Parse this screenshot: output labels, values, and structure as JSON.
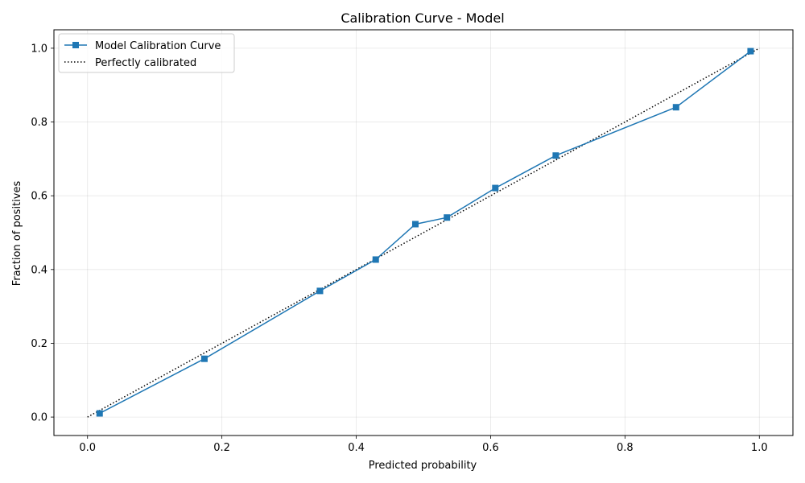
{
  "chart_data": {
    "type": "line",
    "title": "Calibration Curve - Model",
    "xlabel": "Predicted probability",
    "ylabel": "Fraction of positives",
    "xlim": [
      -0.05,
      1.05
    ],
    "ylim": [
      -0.05,
      1.05
    ],
    "x_ticks": [
      0.0,
      0.2,
      0.4,
      0.6,
      0.8,
      1.0
    ],
    "x_tick_labels": [
      "0.0",
      "0.2",
      "0.4",
      "0.6",
      "0.8",
      "1.0"
    ],
    "y_ticks": [
      0.0,
      0.2,
      0.4,
      0.6,
      0.8,
      1.0
    ],
    "y_tick_labels": [
      "0.0",
      "0.2",
      "0.4",
      "0.6",
      "0.8",
      "1.0"
    ],
    "grid": true,
    "legend_position": "top-left",
    "series": [
      {
        "name": "Model Calibration Curve",
        "color": "#1f77b4",
        "marker": "square",
        "line_style": "solid",
        "x": [
          0.018,
          0.174,
          0.346,
          0.429,
          0.488,
          0.535,
          0.607,
          0.697,
          0.876,
          0.987
        ],
        "y": [
          0.01,
          0.158,
          0.342,
          0.427,
          0.523,
          0.541,
          0.621,
          0.709,
          0.84,
          0.992
        ]
      },
      {
        "name": "Perfectly calibrated",
        "color": "#000000",
        "marker": "none",
        "line_style": "dotted",
        "x": [
          0.0,
          1.0
        ],
        "y": [
          0.0,
          1.0
        ]
      }
    ]
  }
}
